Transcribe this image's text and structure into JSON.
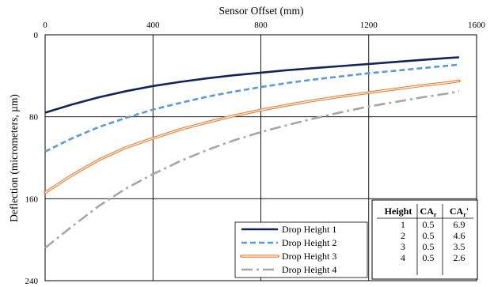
{
  "chart_data": {
    "type": "line",
    "x_axis": {
      "label": "Sensor Offset (mm)",
      "position": "top",
      "ticks": [
        0,
        400,
        800,
        1200,
        1600
      ],
      "range": [
        0,
        1600
      ]
    },
    "y_axis": {
      "label": "Deflection (micrometers, µm)",
      "inverted": true,
      "ticks": [
        0,
        80,
        160,
        240
      ],
      "range": [
        0,
        240
      ]
    },
    "grid": true,
    "legend_position": "bottom-center",
    "series": [
      {
        "name": "Drop Height 1",
        "style": "solid",
        "color": "#13245a",
        "x": [
          0,
          100,
          200,
          300,
          400,
          500,
          600,
          700,
          800,
          900,
          1000,
          1100,
          1200,
          1300,
          1400,
          1500,
          1535
        ],
        "y": [
          76,
          68,
          61,
          55,
          50,
          46,
          42.5,
          39.5,
          37,
          34.5,
          32.5,
          30.5,
          28.5,
          26.5,
          24.5,
          22.5,
          22
        ]
      },
      {
        "name": "Drop Height 2",
        "style": "dashed",
        "color": "#5b9bd5",
        "x": [
          0,
          100,
          200,
          300,
          400,
          500,
          600,
          700,
          800,
          900,
          1000,
          1100,
          1200,
          1300,
          1400,
          1500,
          1535
        ],
        "y": [
          114,
          101,
          90,
          81,
          73,
          66.5,
          60.5,
          55.5,
          51,
          47,
          43.5,
          40.5,
          37.5,
          35,
          32.5,
          30,
          29
        ]
      },
      {
        "name": "Drop Height 3",
        "style": "double",
        "color": "#ed7d31",
        "x": [
          0,
          100,
          200,
          300,
          400,
          500,
          600,
          700,
          800,
          900,
          1000,
          1100,
          1200,
          1300,
          1400,
          1500,
          1535
        ],
        "y": [
          154,
          137,
          122,
          110,
          101,
          92.5,
          85.5,
          79,
          73.5,
          68.5,
          64,
          60,
          56.5,
          53,
          49.5,
          46.5,
          45
        ]
      },
      {
        "name": "Drop Height 4",
        "style": "dashdot",
        "color": "#a6a6a6",
        "x": [
          0,
          100,
          200,
          300,
          400,
          500,
          600,
          700,
          800,
          900,
          1000,
          1100,
          1200,
          1300,
          1400,
          1500,
          1535
        ],
        "y": [
          208,
          187,
          167,
          150,
          136,
          123.5,
          112.5,
          103,
          95,
          88,
          81.5,
          75.5,
          70,
          65.5,
          61,
          57,
          55
        ]
      }
    ],
    "table": {
      "headers": [
        "Height",
        "CA",
        "CA"
      ],
      "header_subscripts": [
        "",
        "r",
        "r"
      ],
      "header_suffixes": [
        "",
        "",
        "'"
      ],
      "rows": [
        [
          "1",
          "0.5",
          "6.9"
        ],
        [
          "2",
          "0.5",
          "4.6"
        ],
        [
          "3",
          "0.5",
          "3.5"
        ],
        [
          "4",
          "0.5",
          "2.6"
        ]
      ]
    }
  }
}
